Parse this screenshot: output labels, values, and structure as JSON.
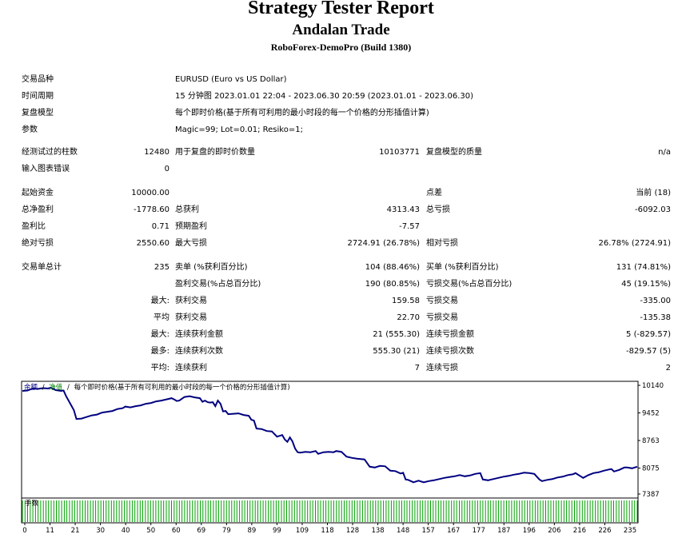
{
  "header": {
    "title": "Strategy Tester Report",
    "expert": "Andalan Trade",
    "server": "RoboForex-DemoPro (Build 1380)"
  },
  "settings": {
    "symbol_label": "交易品种",
    "symbol_value": "EURUSD (Euro vs US Dollar)",
    "period_label": "时间周期",
    "period_value": "15 分钟图 2023.01.01 22:04 - 2023.06.30 20:59 (2023.01.01 - 2023.06.30)",
    "model_label": "复盘模型",
    "model_value": "每个即时价格(基于所有可利用的最小时段的每一个价格的分形插值计算)",
    "params_label": "参数",
    "params_value": "Magic=99; Lot=0.01; Resiko=1;"
  },
  "stats": {
    "bars_label": "经测试过的柱数",
    "bars_value": "12480",
    "ticks_label": "用于复盘的即时价数量",
    "ticks_value": "10103771",
    "quality_label": "复盘模型的质量",
    "quality_value": "n/a",
    "errors_label": "输入图表错误",
    "errors_value": "0",
    "deposit_label": "起始资金",
    "deposit_value": "10000.00",
    "spread_label": "点差",
    "spread_value": "当前 (18)",
    "net_label": "总净盈利",
    "net_value": "-1778.60",
    "gross_profit_label": "总获利",
    "gross_profit_value": "4313.43",
    "gross_loss_label": "总亏损",
    "gross_loss_value": "-6092.03",
    "pf_label": "盈利比",
    "pf_value": "0.71",
    "expected_label": "预期盈利",
    "expected_value": "-7.57",
    "abs_dd_label": "绝对亏损",
    "abs_dd_value": "2550.60",
    "max_dd_label": "最大亏损",
    "max_dd_value": "2724.91 (26.78%)",
    "rel_dd_label": "相对亏损",
    "rel_dd_value": "26.78% (2724.91)",
    "trades_label": "交易单总计",
    "trades_value": "235",
    "short_label": "卖单 (%获利百分比)",
    "short_value": "104 (88.46%)",
    "long_label": "买单 (%获利百分比)",
    "long_value": "131 (74.81%)",
    "win_label": "盈利交易(%占总百分比)",
    "win_value": "190 (80.85%)",
    "loss_label": "亏损交易(%占总百分比)",
    "loss_value": "45 (19.15%)",
    "largest_prefix": "最大:",
    "largest_win_label": "获利交易",
    "largest_win_value": "159.58",
    "largest_loss_label": "亏损交易",
    "largest_loss_value": "-335.00",
    "avg_prefix": "平均",
    "avg_win_label": "获利交易",
    "avg_win_value": "22.70",
    "avg_loss_label": "亏损交易",
    "avg_loss_value": "-135.38",
    "max_prefix": "最大:",
    "cons_win_amt_label": "连续获利金额",
    "cons_win_amt_value": "21 (555.30)",
    "cons_loss_amt_label": "连续亏损金额",
    "cons_loss_amt_value": "5 (-829.57)",
    "most_prefix": "最多:",
    "cons_win_cnt_label": "连续获利次数",
    "cons_win_cnt_value": "555.30 (21)",
    "cons_loss_cnt_label": "连续亏损次数",
    "cons_loss_cnt_value": "-829.57 (5)",
    "mean_prefix": "平均:",
    "avg_cons_win_label": "连续获利",
    "avg_cons_win_value": "7",
    "avg_cons_loss_label": "连续亏损",
    "avg_cons_loss_value": "2"
  },
  "chart_data": {
    "type": "line",
    "legend": {
      "balance": "余额",
      "sep1": "/",
      "equity": "净值",
      "sep2": "/",
      "model": "每个即时价格(基于所有可利用的最小时段的每一个价格的分形插值计算)"
    },
    "colors": {
      "balance": "#000080",
      "equity": "#008000",
      "volume": "#00a000",
      "legend_balance": "#000080",
      "legend_equity": "#008000"
    },
    "y_ticks": [
      "10140",
      "9452",
      "8763",
      "8075",
      "7387"
    ],
    "y_tick_values": [
      10140,
      9452,
      8763,
      8075,
      7387
    ],
    "ylim": [
      7387,
      10300
    ],
    "x_ticks": [
      "0",
      "11",
      "21",
      "30",
      "40",
      "50",
      "60",
      "69",
      "79",
      "89",
      "99",
      "109",
      "118",
      "128",
      "138",
      "148",
      "157",
      "167",
      "177",
      "187",
      "196",
      "206",
      "216",
      "226",
      "235"
    ],
    "xlim": [
      0,
      239
    ],
    "volume_label": "手数",
    "balance_points": [
      [
        0,
        10000
      ],
      [
        2,
        10010
      ],
      [
        4,
        10060
      ],
      [
        6,
        10050
      ],
      [
        8,
        10070
      ],
      [
        10,
        10060
      ],
      [
        11,
        10080
      ],
      [
        13,
        10020
      ],
      [
        15,
        10000
      ],
      [
        16,
        10010
      ],
      [
        17,
        9870
      ],
      [
        19,
        9640
      ],
      [
        20,
        9520
      ],
      [
        21,
        9300
      ],
      [
        23,
        9310
      ],
      [
        25,
        9350
      ],
      [
        27,
        9390
      ],
      [
        29,
        9410
      ],
      [
        31,
        9460
      ],
      [
        33,
        9480
      ],
      [
        35,
        9500
      ],
      [
        37,
        9550
      ],
      [
        39,
        9570
      ],
      [
        40,
        9610
      ],
      [
        42,
        9590
      ],
      [
        44,
        9620
      ],
      [
        46,
        9640
      ],
      [
        48,
        9680
      ],
      [
        50,
        9700
      ],
      [
        52,
        9740
      ],
      [
        54,
        9760
      ],
      [
        56,
        9790
      ],
      [
        58,
        9820
      ],
      [
        59,
        9790
      ],
      [
        60,
        9750
      ],
      [
        61,
        9760
      ],
      [
        63,
        9850
      ],
      [
        65,
        9870
      ],
      [
        67,
        9840
      ],
      [
        69,
        9820
      ],
      [
        70,
        9730
      ],
      [
        71,
        9760
      ],
      [
        72,
        9720
      ],
      [
        73,
        9710
      ],
      [
        74,
        9720
      ],
      [
        75,
        9620
      ],
      [
        76,
        9760
      ],
      [
        77,
        9680
      ],
      [
        78,
        9490
      ],
      [
        79,
        9500
      ],
      [
        80,
        9420
      ],
      [
        82,
        9430
      ],
      [
        84,
        9440
      ],
      [
        86,
        9400
      ],
      [
        88,
        9380
      ],
      [
        89,
        9280
      ],
      [
        90,
        9260
      ],
      [
        91,
        9060
      ],
      [
        93,
        9050
      ],
      [
        95,
        9000
      ],
      [
        97,
        8990
      ],
      [
        99,
        8860
      ],
      [
        100,
        8880
      ],
      [
        101,
        8900
      ],
      [
        102,
        8790
      ],
      [
        103,
        8730
      ],
      [
        104,
        8840
      ],
      [
        105,
        8740
      ],
      [
        106,
        8560
      ],
      [
        107,
        8470
      ],
      [
        108,
        8460
      ],
      [
        110,
        8480
      ],
      [
        112,
        8470
      ],
      [
        114,
        8500
      ],
      [
        115,
        8430
      ],
      [
        117,
        8470
      ],
      [
        119,
        8480
      ],
      [
        121,
        8470
      ],
      [
        122,
        8500
      ],
      [
        124,
        8480
      ],
      [
        126,
        8360
      ],
      [
        128,
        8330
      ],
      [
        130,
        8310
      ],
      [
        133,
        8290
      ],
      [
        135,
        8110
      ],
      [
        137,
        8090
      ],
      [
        139,
        8130
      ],
      [
        141,
        8120
      ],
      [
        143,
        8010
      ],
      [
        145,
        8000
      ],
      [
        147,
        7940
      ],
      [
        148,
        7960
      ],
      [
        149,
        7790
      ],
      [
        150,
        7780
      ],
      [
        152,
        7720
      ],
      [
        154,
        7760
      ],
      [
        156,
        7720
      ],
      [
        158,
        7750
      ],
      [
        160,
        7770
      ],
      [
        162,
        7800
      ],
      [
        164,
        7830
      ],
      [
        166,
        7850
      ],
      [
        168,
        7870
      ],
      [
        170,
        7900
      ],
      [
        172,
        7870
      ],
      [
        174,
        7890
      ],
      [
        176,
        7930
      ],
      [
        178,
        7950
      ],
      [
        179,
        7790
      ],
      [
        181,
        7770
      ],
      [
        183,
        7800
      ],
      [
        185,
        7830
      ],
      [
        187,
        7860
      ],
      [
        189,
        7880
      ],
      [
        191,
        7910
      ],
      [
        193,
        7930
      ],
      [
        195,
        7960
      ],
      [
        197,
        7950
      ],
      [
        199,
        7930
      ],
      [
        201,
        7790
      ],
      [
        202,
        7750
      ],
      [
        204,
        7780
      ],
      [
        206,
        7800
      ],
      [
        208,
        7840
      ],
      [
        210,
        7860
      ],
      [
        212,
        7900
      ],
      [
        214,
        7920
      ],
      [
        215,
        7950
      ],
      [
        217,
        7870
      ],
      [
        218,
        7830
      ],
      [
        220,
        7900
      ],
      [
        222,
        7950
      ],
      [
        224,
        7970
      ],
      [
        226,
        8010
      ],
      [
        228,
        8040
      ],
      [
        229,
        8050
      ],
      [
        230,
        7990
      ],
      [
        232,
        8030
      ],
      [
        234,
        8090
      ],
      [
        235,
        8090
      ],
      [
        237,
        8070
      ],
      [
        239,
        8110
      ]
    ]
  }
}
